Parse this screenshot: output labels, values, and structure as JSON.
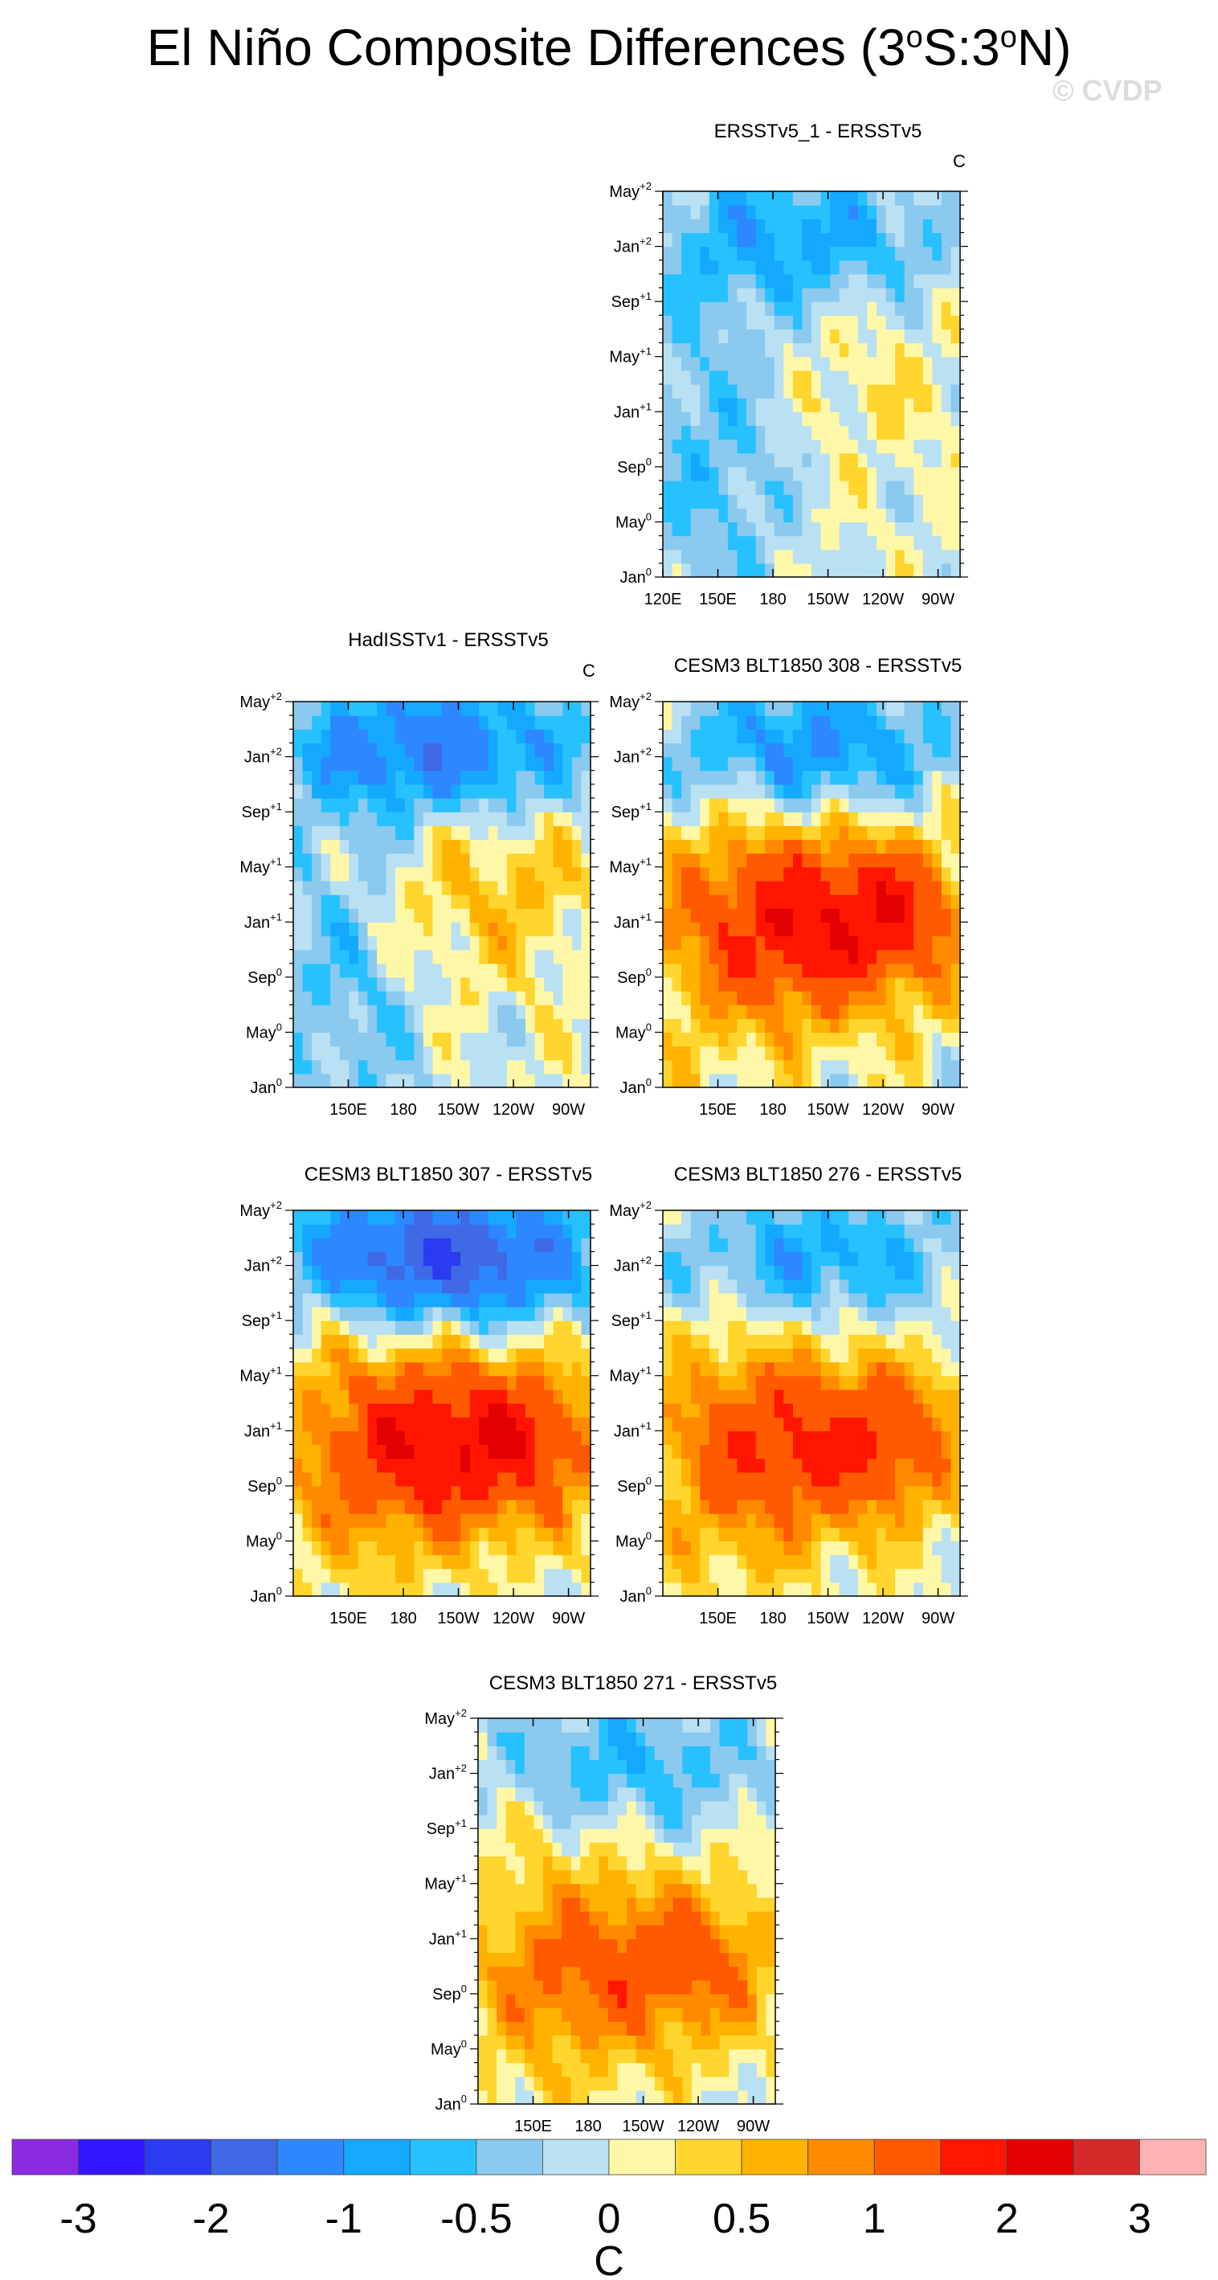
{
  "header": {
    "title_prefix": "El Niño Composite Differences (3",
    "title_mid": "S:3",
    "title_suffix": "N)",
    "degree_symbol": "o",
    "watermark": "© CVDP"
  },
  "chart_data": [
    {
      "type": "heatmap",
      "title": "ERSSTv5_1 - ERSSTv5",
      "units": "C",
      "x_ticks": [
        "120E",
        "150E",
        "180",
        "150W",
        "120W",
        "90W"
      ],
      "y_ticks": [
        "Jan0",
        "May0",
        "Sep0",
        "Jan+1",
        "May+1",
        "Sep+1",
        "Jan+2",
        "May+2"
      ],
      "pattern": {
        "east_warm": 0.2,
        "east_center_month": 14,
        "west_cool": -0.6,
        "late_cool": -0.8,
        "noise": 0.25
      }
    },
    {
      "type": "heatmap",
      "title": "HadISSTv1 - ERSSTv5",
      "units": "C",
      "x_ticks": [
        "150E",
        "180",
        "150W",
        "120W",
        "90W"
      ],
      "y_ticks": [
        "Jan0",
        "May0",
        "Sep0",
        "Jan+1",
        "May+1",
        "Sep+1",
        "Jan+2",
        "May+2"
      ],
      "pattern": {
        "east_warm": 0.5,
        "east_center_month": 14,
        "west_cool": -0.6,
        "late_cool": -1.3,
        "noise": 0.3
      }
    },
    {
      "type": "heatmap",
      "title": "CESM3 BLT1850 308 - ERSSTv5",
      "units": "C",
      "x_ticks": [
        "150E",
        "180",
        "150W",
        "120W",
        "90W"
      ],
      "y_ticks": [
        "Jan0",
        "May0",
        "Sep0",
        "Jan+1",
        "May+1",
        "Sep+1",
        "Jan+2",
        "May+2"
      ],
      "pattern": {
        "east_warm": 1.9,
        "east_center_month": 12,
        "west_cool": 0.3,
        "late_cool": -1.1,
        "noise": 0.3
      }
    },
    {
      "type": "heatmap",
      "title": "CESM3 BLT1850 307 - ERSSTv5",
      "units": "C",
      "x_ticks": [
        "150E",
        "180",
        "150W",
        "120W",
        "90W"
      ],
      "y_ticks": [
        "Jan0",
        "May0",
        "Sep0",
        "Jan+1",
        "May+1",
        "Sep+1",
        "Jan+2",
        "May+2"
      ],
      "pattern": {
        "east_warm": 1.9,
        "east_center_month": 11,
        "west_cool": 0.3,
        "late_cool": -2.0,
        "noise": 0.3
      }
    },
    {
      "type": "heatmap",
      "title": "CESM3 BLT1850 276 - ERSSTv5",
      "units": "C",
      "x_ticks": [
        "150E",
        "180",
        "150W",
        "120W",
        "90W"
      ],
      "y_ticks": [
        "Jan0",
        "May0",
        "Sep0",
        "Jan+1",
        "May+1",
        "Sep+1",
        "Jan+2",
        "May+2"
      ],
      "pattern": {
        "east_warm": 1.5,
        "east_center_month": 11,
        "west_cool": 0.4,
        "late_cool": -0.9,
        "noise": 0.25
      }
    },
    {
      "type": "heatmap",
      "title": "CESM3 BLT1850 271 - ERSSTv5",
      "units": "C",
      "x_ticks": [
        "150E",
        "180",
        "150W",
        "120W",
        "90W"
      ],
      "y_ticks": [
        "Jan0",
        "May0",
        "Sep0",
        "Jan+1",
        "May+1",
        "Sep+1",
        "Jan+2",
        "May+2"
      ],
      "pattern": {
        "east_warm": 1.2,
        "east_center_month": 10,
        "west_cool": 0.3,
        "late_cool": -0.7,
        "noise": 0.25
      }
    }
  ],
  "colorbar": {
    "label": "C",
    "tick_labels": [
      "-3",
      "-2",
      "-1",
      "-0.5",
      "0",
      "0.5",
      "1",
      "2",
      "3"
    ],
    "levels": [
      -3,
      -2.5,
      -2,
      -1.5,
      -1,
      -0.75,
      -0.5,
      -0.25,
      0,
      0.25,
      0.5,
      0.75,
      1,
      1.5,
      2,
      2.5,
      3
    ],
    "colors": [
      "#8a2be2",
      "#3314ff",
      "#2a3bf0",
      "#4069e6",
      "#2d87ff",
      "#15a8ff",
      "#27c1ff",
      "#8bc9ee",
      "#b9e0f3",
      "#fff7a8",
      "#ffd52e",
      "#ffb300",
      "#ff8a00",
      "#ff5a00",
      "#ff1600",
      "#e20000",
      "#d42a2a",
      "#ffb2b2"
    ]
  }
}
